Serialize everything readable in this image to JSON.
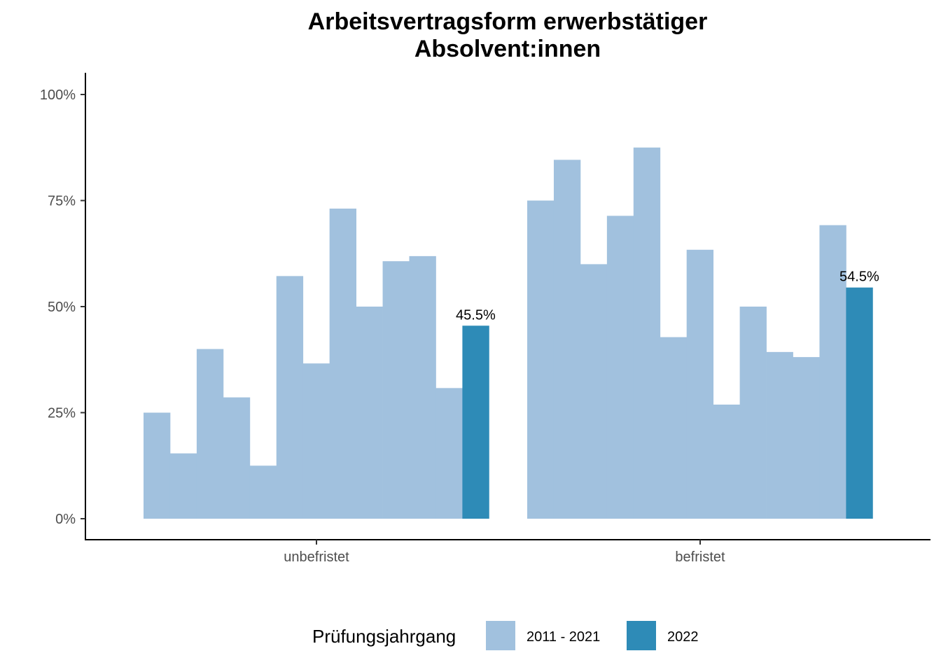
{
  "chart_data": {
    "type": "bar",
    "title_line1": "Arbeitsvertragsform erwerbstätiger",
    "title_line2": "Absolvent:innen",
    "xlabel": "",
    "ylabel": "",
    "categories": [
      "unbefristet",
      "befristet"
    ],
    "y_ticks": [
      "0%",
      "25%",
      "50%",
      "75%",
      "100%"
    ],
    "ylim": [
      0,
      1
    ],
    "legend_title": "Prüfungsjahrgang",
    "legend_position": "bottom",
    "grid": false,
    "series": [
      {
        "name": "2011 - 2021",
        "color": "#a1c1de",
        "values": {
          "unbefristet": [
            0.25,
            0.154,
            0.4,
            0.286,
            0.125,
            0.572,
            0.366,
            0.731,
            0.5,
            0.607,
            0.619,
            0.308
          ],
          "befristet": [
            0.75,
            0.846,
            0.6,
            0.714,
            0.875,
            0.428,
            0.634,
            0.269,
            0.5,
            0.393,
            0.381,
            0.692
          ]
        }
      },
      {
        "name": "2022",
        "color": "#2e8bb7",
        "values": {
          "unbefristet": [
            0.455
          ],
          "befristet": [
            0.545
          ]
        },
        "labels": {
          "unbefristet": "45.5%",
          "befristet": "54.5%"
        }
      }
    ]
  }
}
